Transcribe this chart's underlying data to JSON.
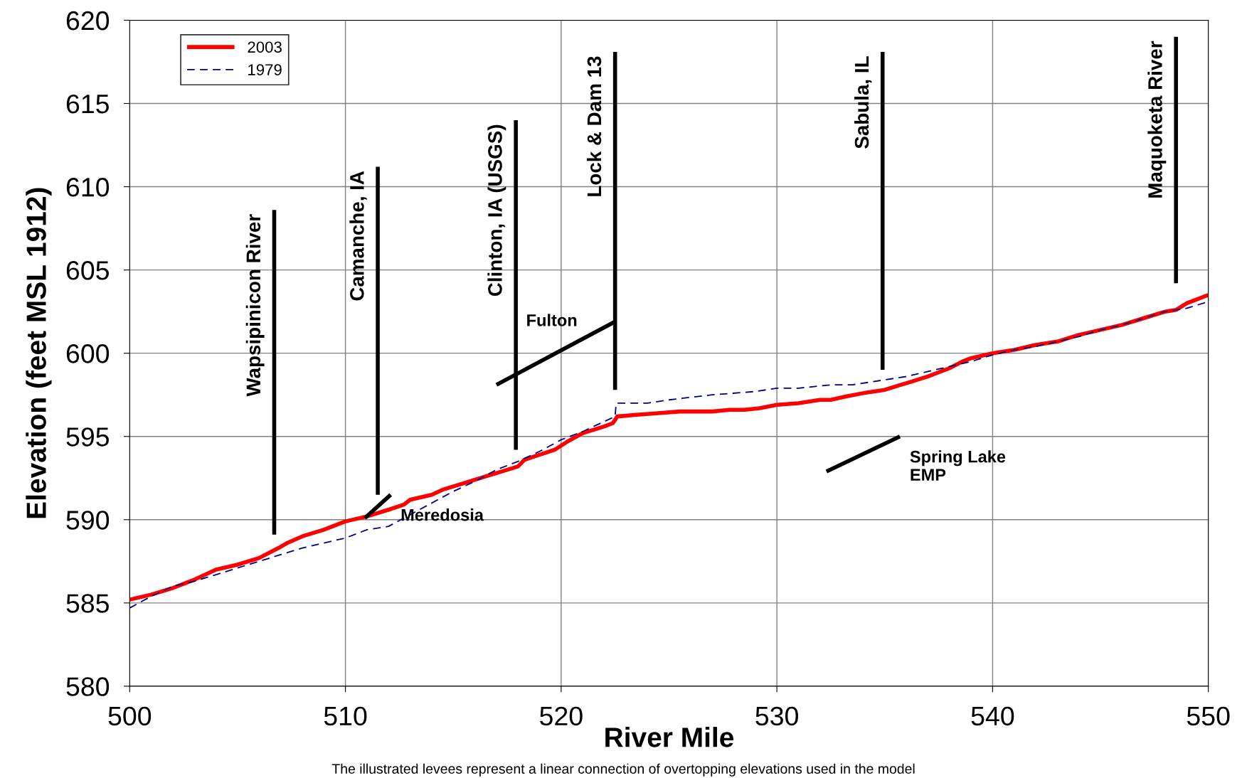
{
  "chart_data": {
    "type": "line",
    "xlabel": "River Mile",
    "ylabel": "Elevation (feet MSL 1912)",
    "xlim": [
      500,
      550
    ],
    "xticks": [
      500,
      510,
      520,
      530,
      540,
      550
    ],
    "ylim": [
      580,
      620
    ],
    "yticks": [
      580,
      585,
      590,
      595,
      600,
      605,
      610,
      615,
      620
    ],
    "grid": true,
    "legend": "top left",
    "series": [
      {
        "name": "2003",
        "color": "#ff0000",
        "line_style": "solid",
        "x": [
          500,
          501,
          502,
          503,
          504,
          505,
          506,
          506.9,
          507.3,
          508,
          509,
          510,
          511,
          512,
          512.7,
          513,
          514,
          514.5,
          515.5,
          516.5,
          517.5,
          518,
          518.3,
          519,
          519.7,
          520.3,
          521,
          522,
          522.4,
          522.6,
          523.5,
          524.5,
          525.5,
          527,
          527.8,
          528.5,
          529.2,
          530,
          531,
          532,
          532.5,
          533.2,
          534,
          535,
          536,
          537,
          538,
          538.6,
          539,
          540,
          541,
          542,
          543,
          544,
          545,
          546,
          547,
          548,
          548.5,
          549,
          550
        ],
        "values": [
          585.2,
          585.5,
          585.9,
          586.4,
          587.0,
          587.3,
          587.7,
          588.3,
          588.6,
          589.0,
          589.4,
          589.9,
          590.2,
          590.6,
          590.9,
          591.2,
          591.5,
          591.8,
          592.2,
          592.6,
          593.0,
          593.2,
          593.6,
          593.9,
          594.2,
          594.7,
          595.2,
          595.6,
          595.8,
          596.2,
          596.3,
          596.4,
          596.5,
          596.5,
          596.6,
          596.6,
          596.7,
          596.9,
          597.0,
          597.2,
          597.2,
          597.4,
          597.6,
          597.8,
          598.2,
          598.6,
          599.1,
          599.5,
          599.7,
          600.0,
          600.2,
          600.5,
          600.7,
          601.1,
          601.4,
          601.7,
          602.1,
          602.5,
          602.6,
          603.0,
          603.5
        ]
      },
      {
        "name": "1979",
        "color": "#000080",
        "line_style": "dashed",
        "x": [
          500,
          501,
          502,
          503,
          504,
          505,
          506,
          507,
          508,
          509,
          510,
          511,
          512,
          513,
          514,
          515,
          516,
          517,
          518,
          519,
          520,
          521,
          522,
          522.5,
          522.55,
          524,
          525,
          527,
          529,
          530,
          531,
          532.5,
          533.5,
          535,
          536,
          537,
          538,
          539,
          540,
          541,
          542,
          543,
          544,
          545,
          546,
          547,
          548,
          549,
          550
        ],
        "values": [
          584.7,
          585.4,
          586.0,
          586.3,
          586.7,
          587.1,
          587.5,
          587.9,
          588.3,
          588.6,
          588.9,
          589.4,
          589.6,
          590.3,
          591.0,
          591.7,
          592.3,
          593.0,
          593.5,
          594.1,
          594.8,
          595.3,
          595.9,
          596.2,
          597.0,
          597.0,
          597.2,
          597.5,
          597.7,
          597.9,
          597.9,
          598.1,
          598.1,
          598.4,
          598.6,
          598.9,
          599.2,
          599.5,
          599.9,
          600.2,
          600.4,
          600.7,
          601.0,
          601.4,
          601.7,
          602.1,
          602.5,
          602.7,
          603.1
        ]
      },
      {
        "name": "Wapsipinicon River",
        "color": "#000000",
        "line_style": "solid",
        "x": [
          506.7,
          506.7
        ],
        "values": [
          589.1,
          608.6
        ]
      },
      {
        "name": "Camanche, IA",
        "color": "#000000",
        "line_style": "solid",
        "x": [
          511.5,
          511.5
        ],
        "values": [
          591.5,
          611.2
        ]
      },
      {
        "name": "Clinton, IA (USGS)",
        "color": "#000000",
        "line_style": "solid",
        "x": [
          517.9,
          517.9
        ],
        "values": [
          594.2,
          614.0
        ]
      },
      {
        "name": "Lock & Dam 13",
        "color": "#000000",
        "line_style": "solid",
        "x": [
          522.5,
          522.5
        ],
        "values": [
          597.8,
          618.1
        ]
      },
      {
        "name": "Sabula, IL",
        "color": "#000000",
        "line_style": "solid",
        "x": [
          534.9,
          534.9
        ],
        "values": [
          599.0,
          618.1
        ]
      },
      {
        "name": "Maquoketa River",
        "color": "#000000",
        "line_style": "solid",
        "x": [
          548.5,
          548.5
        ],
        "values": [
          604.2,
          619.0
        ]
      },
      {
        "name": "Meredosia",
        "color": "#000000",
        "line_style": "solid",
        "x": [
          510.9,
          512.1
        ],
        "values": [
          590.1,
          591.5
        ]
      },
      {
        "name": "Fulton",
        "color": "#000000",
        "line_style": "solid",
        "x": [
          517.0,
          522.5
        ],
        "values": [
          598.1,
          601.9
        ]
      },
      {
        "name": "Spring Lake\nEMP",
        "color": "#000000",
        "line_style": "solid",
        "x": [
          532.3,
          535.7
        ],
        "values": [
          592.9,
          595.0
        ]
      }
    ],
    "annotations": [
      "The illustrated levees represent a linear connection of overtopping elevations used in the model"
    ]
  }
}
